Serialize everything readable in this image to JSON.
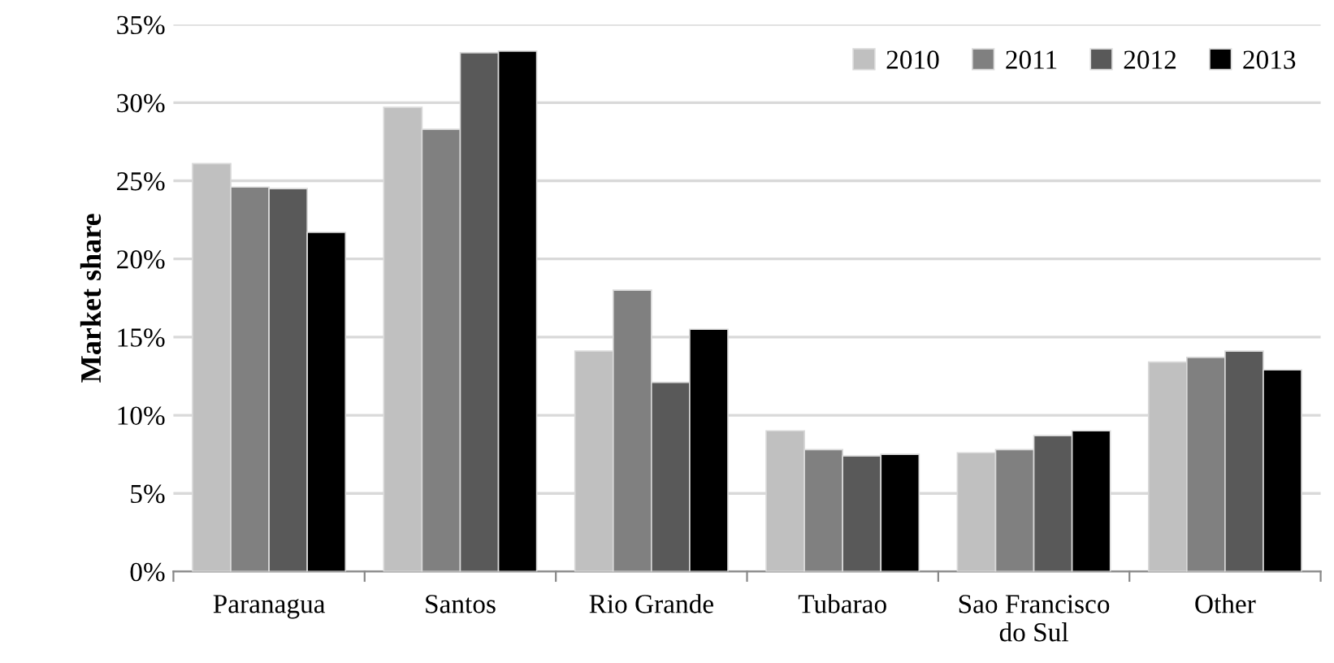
{
  "chart_data": {
    "type": "bar",
    "ylabel": "Market share",
    "categories": [
      "Paranagua",
      "Santos",
      "Rio Grande",
      "Tubarao",
      "Sao Francisco\ndo Sul",
      "Other"
    ],
    "series": [
      {
        "name": "2010",
        "color": "#c0c0c0",
        "values": [
          26.1,
          29.7,
          14.1,
          9.0,
          7.6,
          13.4
        ]
      },
      {
        "name": "2011",
        "color": "#808080",
        "values": [
          24.6,
          28.3,
          18.0,
          7.8,
          7.8,
          13.7
        ]
      },
      {
        "name": "2012",
        "color": "#595959",
        "values": [
          24.5,
          33.2,
          12.1,
          7.4,
          8.7,
          14.1
        ]
      },
      {
        "name": "2013",
        "color": "#000000",
        "values": [
          21.7,
          33.3,
          15.5,
          7.5,
          9.0,
          12.9
        ]
      }
    ],
    "ylim": [
      0,
      35
    ],
    "yticks": [
      {
        "value": 0,
        "label": "0%"
      },
      {
        "value": 5,
        "label": "5%"
      },
      {
        "value": 10,
        "label": "10%"
      },
      {
        "value": 15,
        "label": "15%"
      },
      {
        "value": 20,
        "label": "20%"
      },
      {
        "value": 25,
        "label": "25%"
      },
      {
        "value": 30,
        "label": "30%"
      },
      {
        "value": 35,
        "label": "35%"
      }
    ],
    "grid": "y",
    "legend": "top right"
  }
}
